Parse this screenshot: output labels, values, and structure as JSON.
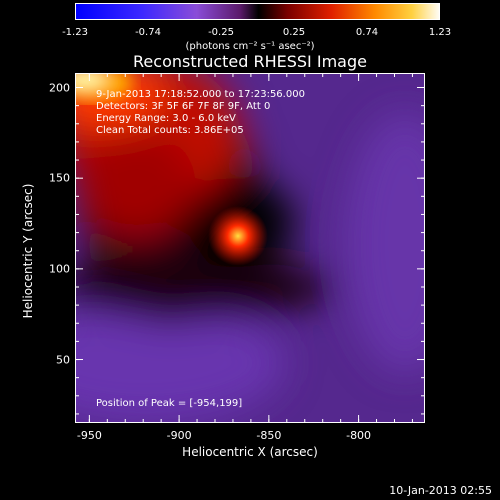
{
  "colorbar": {
    "ticks": [
      "-1.23",
      "-0.74",
      "-0.25",
      "0.25",
      "0.74",
      "1.23"
    ],
    "units": "(photons cm⁻² s⁻¹ asec⁻²)"
  },
  "chart_data": {
    "type": "heatmap",
    "title": "Reconstructed RHESSI Image",
    "xlabel": "Heliocentric X (arcsec)",
    "ylabel": "Heliocentric Y (arcsec)",
    "xlim": [
      -958,
      -763
    ],
    "ylim": [
      15,
      208
    ],
    "xticks": [
      "-950",
      "-900",
      "-850",
      "-800"
    ],
    "yticks": [
      "200",
      "150",
      "100",
      "50"
    ],
    "zlim": [
      -1.23,
      1.23
    ],
    "peak_position": [
      -954,
      199
    ],
    "annotations": [
      "9-Jan-2013 17:18:52.000 to 17:23:56.000",
      "Detectors: 3F 5F 6F 7F 8F 9F, Att 0",
      "Energy Range: 3.0 - 6.0 keV",
      "Clean    Total counts: 3.86E+05",
      "Position of Peak = [-954,199]"
    ]
  },
  "timestamp": "10-Jan-2013 02:55"
}
